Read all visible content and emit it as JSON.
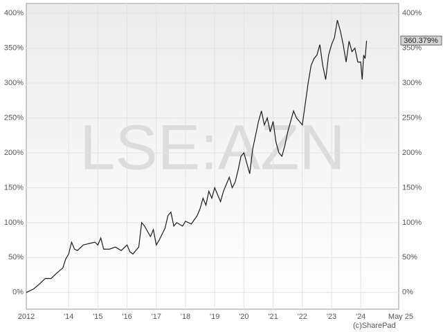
{
  "chart_data": {
    "type": "line",
    "watermark": "LSE:AZN",
    "copyright": "(c)SharePad",
    "x": [
      2012.55,
      2012.8,
      2013.0,
      2013.2,
      2013.4,
      2013.6,
      2013.8,
      2013.9,
      2014.0,
      2014.1,
      2014.2,
      2014.3,
      2014.5,
      2014.7,
      2014.9,
      2015.0,
      2015.1,
      2015.2,
      2015.4,
      2015.6,
      2015.8,
      2016.0,
      2016.1,
      2016.2,
      2016.4,
      2016.5,
      2016.6,
      2016.8,
      2016.9,
      2017.0,
      2017.1,
      2017.3,
      2017.4,
      2017.5,
      2017.6,
      2017.7,
      2017.9,
      2018.0,
      2018.2,
      2018.4,
      2018.5,
      2018.6,
      2018.7,
      2018.8,
      2018.9,
      2019.0,
      2019.1,
      2019.2,
      2019.3,
      2019.5,
      2019.6,
      2019.7,
      2019.8,
      2019.9,
      2020.0,
      2020.1,
      2020.2,
      2020.3,
      2020.5,
      2020.6,
      2020.7,
      2020.8,
      2020.9,
      2021.0,
      2021.1,
      2021.2,
      2021.3,
      2021.4,
      2021.5,
      2021.6,
      2021.7,
      2021.8,
      2021.9,
      2022.0,
      2022.1,
      2022.2,
      2022.3,
      2022.4,
      2022.5,
      2022.6,
      2022.7,
      2022.8,
      2022.9,
      2023.0,
      2023.1,
      2023.2,
      2023.3,
      2023.4,
      2023.5,
      2023.6,
      2023.7,
      2023.8,
      2023.9,
      2024.0,
      2024.05,
      2024.1,
      2024.15,
      2024.2
    ],
    "series": [
      {
        "color": "#1a1a1a",
        "values": [
          0,
          5,
          12,
          20,
          20,
          28,
          35,
          48,
          55,
          72,
          62,
          60,
          68,
          70,
          72,
          68,
          78,
          62,
          62,
          65,
          60,
          68,
          58,
          55,
          65,
          100,
          95,
          80,
          90,
          68,
          75,
          92,
          110,
          115,
          95,
          100,
          95,
          102,
          98,
          110,
          120,
          135,
          125,
          145,
          135,
          150,
          140,
          130,
          145,
          165,
          150,
          158,
          175,
          195,
          200,
          185,
          170,
          205,
          245,
          260,
          240,
          250,
          230,
          245,
          215,
          200,
          195,
          210,
          230,
          245,
          260,
          250,
          245,
          240,
          270,
          300,
          325,
          335,
          340,
          355,
          325,
          305,
          340,
          355,
          365,
          390,
          375,
          355,
          330,
          360,
          345,
          350,
          330,
          330,
          305,
          340,
          335,
          360.379
        ]
      }
    ],
    "last_label": {
      "value": 360.379,
      "label": "360.379%"
    },
    "xlim": [
      2012.55,
      2025.3
    ],
    "xticks": [
      {
        "value": 2012.55,
        "label": "2012"
      },
      {
        "value": 2014,
        "label": "'14"
      },
      {
        "value": 2015,
        "label": "'15"
      },
      {
        "value": 2016,
        "label": "'16"
      },
      {
        "value": 2017,
        "label": "'17"
      },
      {
        "value": 2018,
        "label": "'18"
      },
      {
        "value": 2019,
        "label": "'19"
      },
      {
        "value": 2020,
        "label": "'20"
      },
      {
        "value": 2021,
        "label": "'21"
      },
      {
        "value": 2022,
        "label": "'22"
      },
      {
        "value": 2023,
        "label": "'23"
      },
      {
        "value": 2024,
        "label": "'24"
      },
      {
        "value": 2025.37,
        "label": "May 25"
      }
    ],
    "ylim": [
      -24,
      414
    ],
    "yticks": [
      {
        "value": 0,
        "label": "0%"
      },
      {
        "value": 50,
        "label": "50%"
      },
      {
        "value": 100,
        "label": "100%"
      },
      {
        "value": 150,
        "label": "150%"
      },
      {
        "value": 200,
        "label": "200%"
      },
      {
        "value": 250,
        "label": "250%"
      },
      {
        "value": 300,
        "label": "300%"
      },
      {
        "value": 350,
        "label": "350%"
      },
      {
        "value": 400,
        "label": "400%"
      }
    ],
    "grid": true
  }
}
